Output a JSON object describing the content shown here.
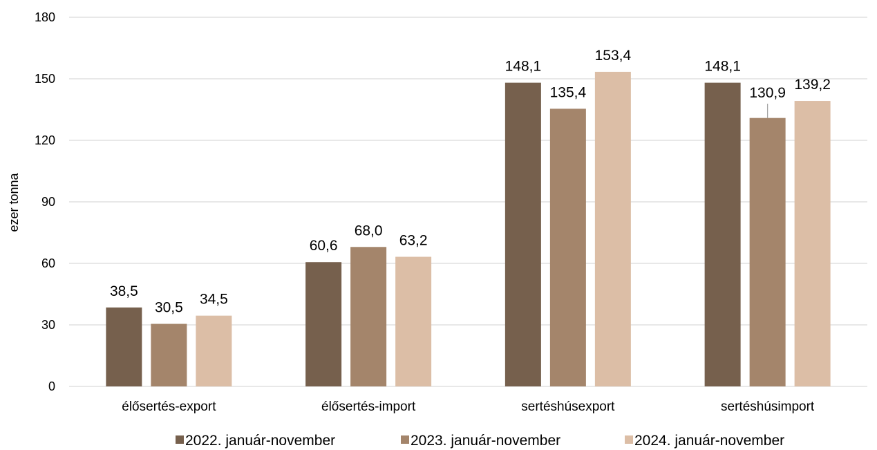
{
  "chart_data": {
    "type": "bar",
    "title": "",
    "xlabel": "",
    "ylabel": "ezer tonna",
    "ylim": [
      0,
      180
    ],
    "yticks": [
      0,
      30,
      60,
      90,
      120,
      150,
      180
    ],
    "grid": true,
    "legend_position": "bottom",
    "categories": [
      "élősertés-export",
      "élősertés-import",
      "sertéshúsexport",
      "sertéshúsimport"
    ],
    "series": [
      {
        "name": "2022. január-november",
        "color": "#76604d",
        "values": [
          38.5,
          60.6,
          148.1,
          148.1
        ],
        "labels": [
          "38,5",
          "60,6",
          "148,1",
          "148,1"
        ]
      },
      {
        "name": "2023. január-november",
        "color": "#a4856b",
        "values": [
          30.5,
          68.0,
          135.4,
          130.9
        ],
        "labels": [
          "30,5",
          "68,0",
          "135,4",
          "130,9"
        ]
      },
      {
        "name": "2024. január-november",
        "color": "#dcbea6",
        "values": [
          34.5,
          63.2,
          153.4,
          139.2
        ],
        "labels": [
          "34,5",
          "63,2",
          "153,4",
          "139,2"
        ]
      }
    ]
  }
}
